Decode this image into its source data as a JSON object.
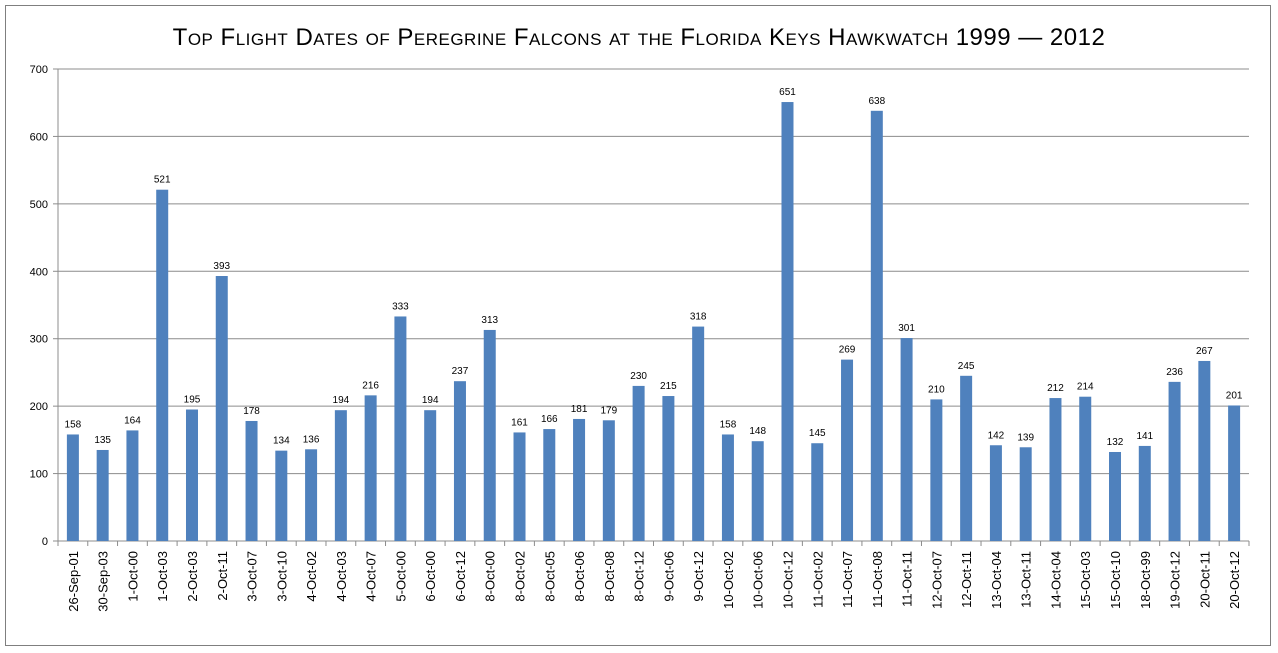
{
  "chart_data": {
    "type": "bar",
    "title": "Top Flight Dates of Peregrine Falcons at the Florida Keys Hawkwatch 1999 — 2012",
    "xlabel": "",
    "ylabel": "",
    "ylim": [
      0,
      700
    ],
    "yticks": [
      0,
      100,
      200,
      300,
      400,
      500,
      600,
      700
    ],
    "grid": true,
    "legend": "none",
    "bar_color": "#4f81bd",
    "categories": [
      "26-Sep-01",
      "30-Sep-03",
      "1-Oct-00",
      "1-Oct-03",
      "2-Oct-03",
      "2-Oct-11",
      "3-Oct-07",
      "3-Oct-10",
      "4-Oct-02",
      "4-Oct-03",
      "4-Oct-07",
      "5-Oct-00",
      "6-Oct-00",
      "6-Oct-12",
      "8-Oct-00",
      "8-Oct-02",
      "8-Oct-05",
      "8-Oct-06",
      "8-Oct-08",
      "8-Oct-12",
      "9-Oct-06",
      "9-Oct-12",
      "10-Oct-02",
      "10-Oct-06",
      "10-Oct-12",
      "11-Oct-02",
      "11-Oct-07",
      "11-Oct-08",
      "11-Oct-11",
      "12-Oct-07",
      "12-Oct-11",
      "13-Oct-04",
      "13-Oct-11",
      "14-Oct-04",
      "15-Oct-03",
      "15-Oct-10",
      "18-Oct-99",
      "19-Oct-12",
      "20-Oct-11",
      "20-Oct-12"
    ],
    "values": [
      158,
      135,
      164,
      521,
      195,
      393,
      178,
      134,
      136,
      194,
      216,
      333,
      194,
      237,
      313,
      161,
      166,
      181,
      179,
      230,
      215,
      318,
      158,
      148,
      651,
      145,
      269,
      638,
      301,
      210,
      245,
      142,
      139,
      212,
      214,
      132,
      141,
      236,
      267,
      201
    ]
  }
}
